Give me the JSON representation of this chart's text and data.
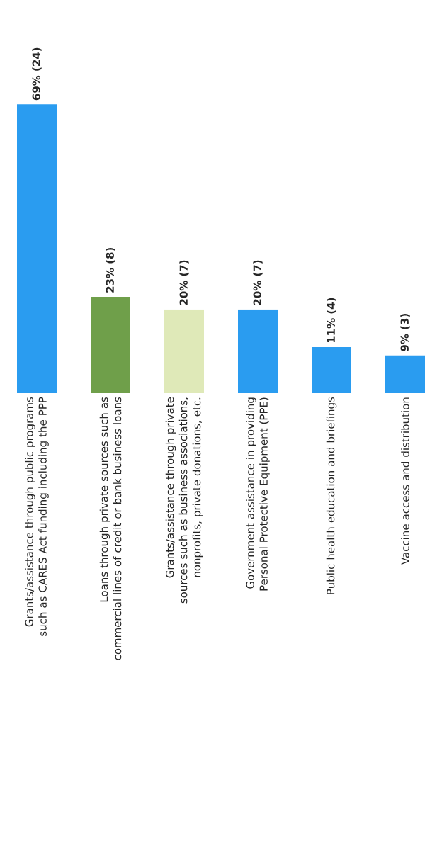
{
  "chart_data": {
    "type": "bar",
    "categories": [
      "Grants/assistance through public programs such as CARES Act funding including the PPP",
      "Loans through private sources such as commercial lines of credit or bank business loans",
      "Grants/assistance through private sources such as business associations, nonprofits, private donations, etc.",
      "Government assistance in providing Personal Protective Equipment (PPE)",
      "Public health education and briefings",
      "Vaccine access and distribution"
    ],
    "values": [
      69,
      23,
      20,
      20,
      11,
      9
    ],
    "colors": [
      "#2a9cf0",
      "#6f9f4a",
      "#dfe9b8",
      "#2a9cf0",
      "#2a9cf0",
      "#2a9cf0"
    ],
    "value_labels": [
      "69% (24)",
      "23% (8)",
      "20% (7)",
      "20% (7)",
      "11% (4)",
      "9% (3)"
    ]
  }
}
